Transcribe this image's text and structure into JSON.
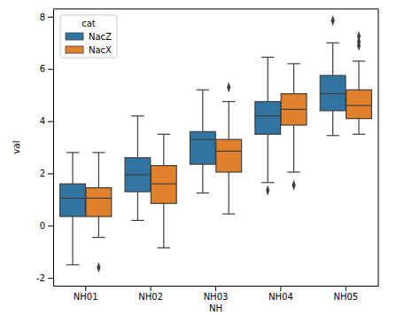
{
  "chart_data": {
    "type": "box",
    "x_label": "NH",
    "y_label": "val",
    "legend_title": "cat",
    "legend": "upper left",
    "categories": [
      "NH01",
      "NH02",
      "NH03",
      "NH04",
      "NH05"
    ],
    "ylim": [
      -2.3,
      8.3
    ],
    "yticks": [
      -2,
      0,
      2,
      4,
      6,
      8
    ],
    "series": [
      {
        "name": "NacZ",
        "color": "#3274a1",
        "values": [
          {
            "low": -1.5,
            "q1": 0.35,
            "median": 1.05,
            "q3": 1.6,
            "high": 2.8,
            "outliers": []
          },
          {
            "low": 0.2,
            "q1": 1.3,
            "median": 1.95,
            "q3": 2.6,
            "high": 4.2,
            "outliers": []
          },
          {
            "low": 1.25,
            "q1": 2.35,
            "median": 3.3,
            "q3": 3.6,
            "high": 5.2,
            "outliers": []
          },
          {
            "low": 1.65,
            "q1": 3.5,
            "median": 4.2,
            "q3": 4.75,
            "high": 6.45,
            "outliers": [
              1.35
            ]
          },
          {
            "low": 3.45,
            "q1": 4.4,
            "median": 5.05,
            "q3": 5.75,
            "high": 7.0,
            "outliers": [
              7.85
            ]
          }
        ]
      },
      {
        "name": "NacX",
        "color": "#e1812c",
        "values": [
          {
            "low": -0.45,
            "q1": 0.35,
            "median": 1.05,
            "q3": 1.45,
            "high": 2.8,
            "outliers": [
              -1.6
            ]
          },
          {
            "low": -0.85,
            "q1": 0.85,
            "median": 1.6,
            "q3": 2.3,
            "high": 3.5,
            "outliers": []
          },
          {
            "low": 0.45,
            "q1": 2.05,
            "median": 2.85,
            "q3": 3.3,
            "high": 4.75,
            "outliers": [
              5.3
            ]
          },
          {
            "low": 2.05,
            "q1": 3.85,
            "median": 4.45,
            "q3": 5.05,
            "high": 6.2,
            "outliers": [
              1.55
            ]
          },
          {
            "low": 3.5,
            "q1": 4.1,
            "median": 4.6,
            "q3": 5.2,
            "high": 6.3,
            "outliers": [
              6.9,
              7.05,
              7.25
            ]
          }
        ]
      }
    ]
  }
}
